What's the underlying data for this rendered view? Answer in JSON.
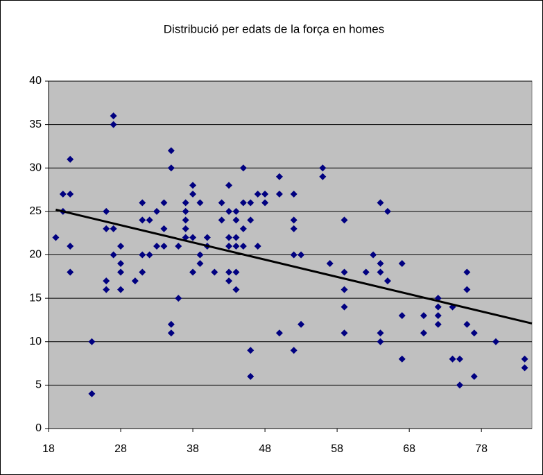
{
  "chart_data": {
    "type": "scatter",
    "title": "Distribució per edats de la força en homes",
    "series": [
      {
        "color": "#000080",
        "x": [
          19,
          20,
          20,
          21,
          21,
          21,
          21,
          24,
          24,
          26,
          26,
          26,
          26,
          27,
          27,
          27,
          27,
          28,
          28,
          28,
          28,
          30,
          31,
          31,
          31,
          31,
          32,
          32,
          33,
          33,
          34,
          34,
          34,
          35,
          35,
          35,
          35,
          36,
          36,
          37,
          37,
          37,
          37,
          37,
          38,
          38,
          38,
          38,
          39,
          39,
          39,
          40,
          40,
          41,
          42,
          42,
          43,
          43,
          43,
          43,
          43,
          43,
          44,
          44,
          44,
          44,
          44,
          44,
          45,
          45,
          45,
          45,
          46,
          46,
          46,
          46,
          47,
          47,
          48,
          48,
          50,
          50,
          50,
          52,
          52,
          52,
          52,
          52,
          53,
          53,
          56,
          56,
          57,
          59,
          59,
          59,
          59,
          59,
          62,
          63,
          64,
          64,
          64,
          64,
          64,
          65,
          65,
          67,
          67,
          67,
          70,
          70,
          72,
          72,
          72,
          72,
          74,
          74,
          75,
          75,
          76,
          76,
          76,
          77,
          77,
          80,
          84,
          84
        ],
        "values": [
          22,
          27,
          25,
          27,
          31,
          21,
          18,
          10,
          4,
          25,
          23,
          17,
          16,
          36,
          35,
          23,
          20,
          21,
          19,
          18,
          16,
          17,
          26,
          24,
          20,
          18,
          24,
          20,
          25,
          21,
          26,
          23,
          21,
          32,
          30,
          12,
          11,
          21,
          15,
          26,
          25,
          24,
          23,
          22,
          28,
          27,
          22,
          18,
          26,
          20,
          19,
          22,
          21,
          18,
          26,
          24,
          28,
          25,
          22,
          21,
          18,
          17,
          25,
          24,
          22,
          21,
          18,
          16,
          30,
          26,
          23,
          21,
          26,
          24,
          9,
          6,
          27,
          21,
          27,
          26,
          29,
          27,
          11,
          27,
          24,
          23,
          20,
          9,
          20,
          12,
          30,
          29,
          19,
          24,
          18,
          16,
          14,
          11,
          18,
          20,
          26,
          19,
          18,
          11,
          10,
          25,
          17,
          19,
          13,
          8,
          13,
          11,
          15,
          14,
          13,
          12,
          14,
          8,
          8,
          5,
          18,
          16,
          12,
          11,
          6,
          10,
          8,
          7
        ]
      }
    ],
    "trendline": {
      "color": "#000000",
      "x": [
        19,
        85
      ],
      "values": [
        25.2,
        12.1
      ]
    },
    "xlim": [
      18,
      85
    ],
    "xticks": [
      18,
      28,
      38,
      48,
      58,
      68,
      78
    ],
    "ylim": [
      0,
      40
    ],
    "yticks": [
      0,
      5,
      10,
      15,
      20,
      25,
      30,
      35,
      40
    ],
    "grid": true,
    "plot_background": "#c0c0c0"
  }
}
